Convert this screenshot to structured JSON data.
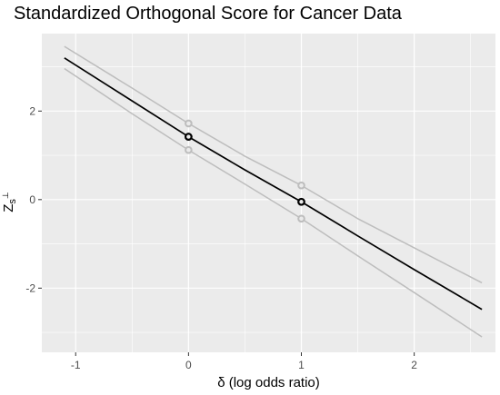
{
  "chart_data": {
    "type": "line",
    "title": "Standardized Orthogonal Score for Cancer Data",
    "xlabel": "δ (log odds ratio)",
    "ylabel_main": "Z",
    "ylabel_sub": "s",
    "ylabel_sup": "⊥",
    "xlim": [
      -1.3,
      2.72
    ],
    "ylim": [
      -3.45,
      3.75
    ],
    "x_ticks": [
      -1,
      0,
      1,
      2
    ],
    "x_tick_labels": [
      "-1",
      "0",
      "1",
      "2"
    ],
    "y_ticks": [
      -2,
      0,
      2
    ],
    "y_tick_labels": [
      "-2",
      "0",
      "2"
    ],
    "grid": true,
    "legend": "none",
    "colors": {
      "panel": "#ebebeb",
      "grid": "#ffffff",
      "main_line": "#000000",
      "band_line": "#bdbdbd"
    },
    "series": [
      {
        "role": "estimate",
        "x": [
          -1.1,
          -0.5,
          0,
          0.5,
          1,
          1.5,
          2,
          2.6
        ],
        "y": [
          3.2,
          2.23,
          1.42,
          0.67,
          -0.05,
          -0.82,
          -1.58,
          -2.48
        ]
      },
      {
        "role": "upper",
        "x": [
          -1.1,
          -0.5,
          0,
          0.5,
          1,
          1.5,
          2,
          2.6
        ],
        "y": [
          3.46,
          2.52,
          1.72,
          0.98,
          0.32,
          -0.43,
          -1.09,
          -1.88
        ]
      },
      {
        "role": "lower",
        "x": [
          -1.1,
          -0.5,
          0,
          0.5,
          1,
          1.5,
          2,
          2.6
        ],
        "y": [
          2.96,
          1.94,
          1.12,
          0.35,
          -0.43,
          -1.27,
          -2.1,
          -3.1
        ]
      }
    ],
    "points": [
      {
        "role": "estimate",
        "x": 0,
        "y": 1.42
      },
      {
        "role": "estimate",
        "x": 1,
        "y": -0.05
      },
      {
        "role": "upper",
        "x": 0,
        "y": 1.72
      },
      {
        "role": "upper",
        "x": 1,
        "y": 0.32
      },
      {
        "role": "lower",
        "x": 0,
        "y": 1.12
      },
      {
        "role": "lower",
        "x": 1,
        "y": -0.43
      }
    ]
  }
}
